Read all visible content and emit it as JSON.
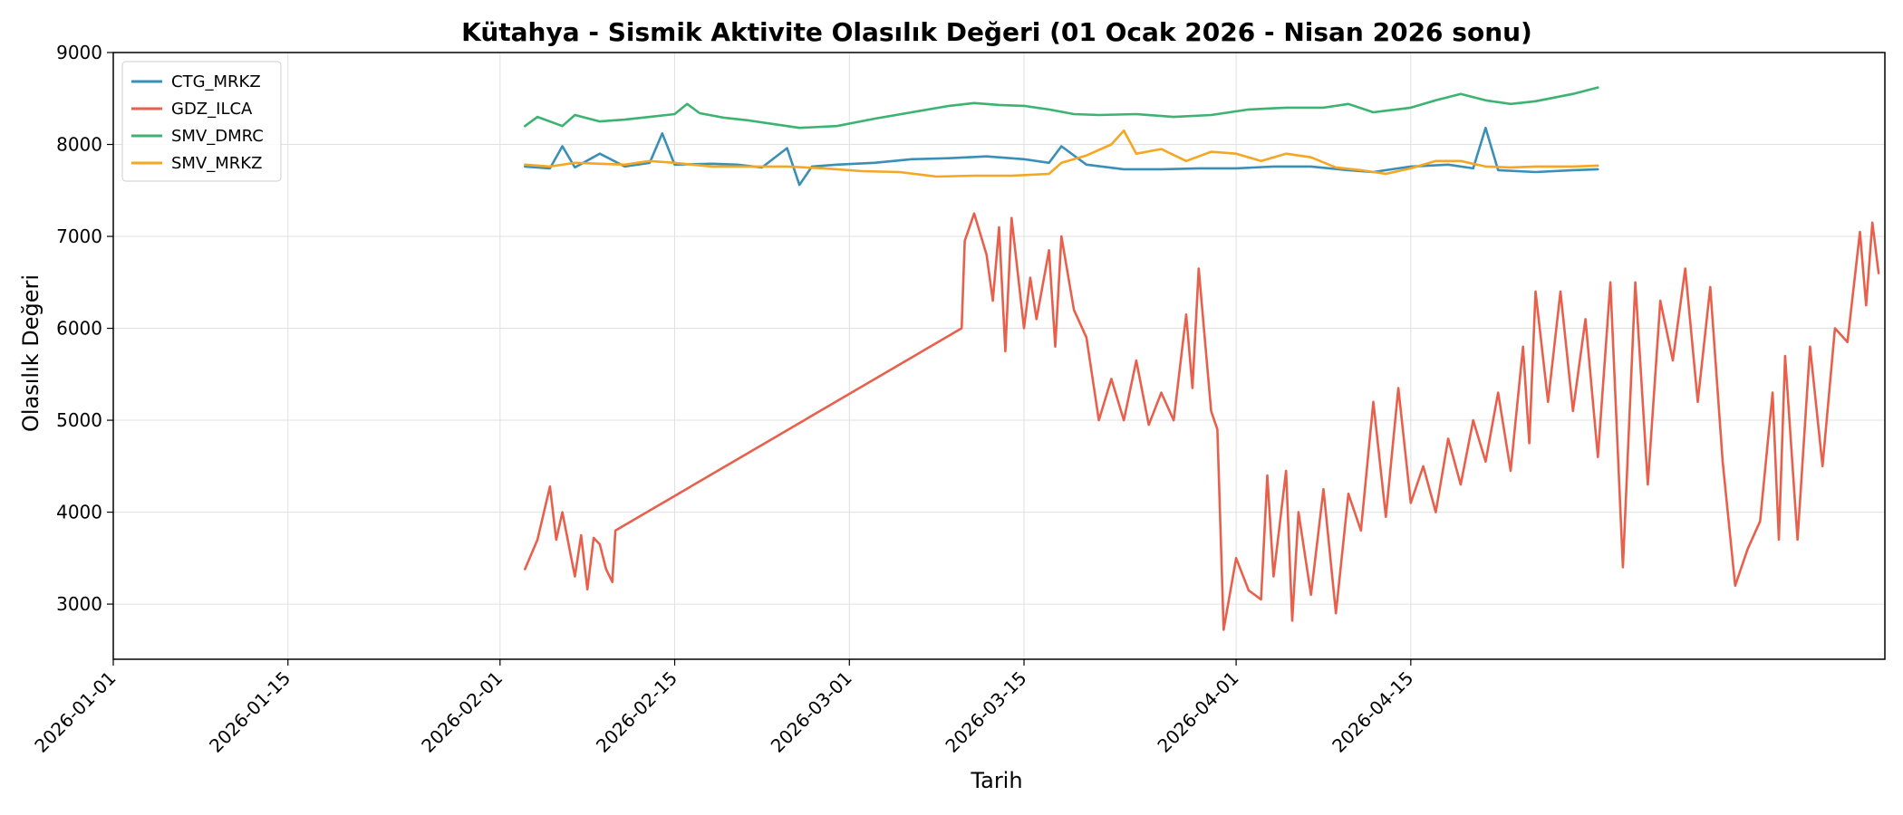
{
  "chart_data": {
    "type": "line",
    "title": "Kütahya - Sismik Aktivite Olasılık Değeri (01 Ocak 2026 - Nisan 2026 sonu)",
    "xlabel": "Tarih",
    "ylabel": "Olasılık Değeri",
    "xlim": [
      "2026-01-01",
      "2026-04-30"
    ],
    "ylim": [
      2400,
      9000
    ],
    "x_ticks": [
      "2026-01-01",
      "2026-01-15",
      "2026-02-01",
      "2026-02-15",
      "2026-03-01",
      "2026-03-15",
      "2026-04-01",
      "2026-04-15"
    ],
    "y_ticks": [
      3000,
      4000,
      5000,
      6000,
      7000,
      8000,
      9000
    ],
    "grid": true,
    "legend_position": "top-left",
    "series": [
      {
        "name": "CTG_MRKZ",
        "color": "#3a8fb7",
        "points": [
          [
            "2026-02-03",
            7760
          ],
          [
            "2026-02-05",
            7740
          ],
          [
            "2026-02-06",
            7980
          ],
          [
            "2026-02-07",
            7750
          ],
          [
            "2026-02-09",
            7900
          ],
          [
            "2026-02-11",
            7760
          ],
          [
            "2026-02-13",
            7800
          ],
          [
            "2026-02-14",
            8120
          ],
          [
            "2026-02-15",
            7780
          ],
          [
            "2026-02-18",
            7790
          ],
          [
            "2026-02-20",
            7780
          ],
          [
            "2026-02-22",
            7750
          ],
          [
            "2026-02-24",
            7960
          ],
          [
            "2026-02-25",
            7560
          ],
          [
            "2026-02-26",
            7760
          ],
          [
            "2026-02-28",
            7780
          ],
          [
            "2026-03-03",
            7800
          ],
          [
            "2026-03-06",
            7840
          ],
          [
            "2026-03-09",
            7850
          ],
          [
            "2026-03-12",
            7870
          ],
          [
            "2026-03-15",
            7840
          ],
          [
            "2026-03-17",
            7800
          ],
          [
            "2026-03-18",
            7980
          ],
          [
            "2026-03-20",
            7780
          ],
          [
            "2026-03-23",
            7730
          ],
          [
            "2026-03-26",
            7730
          ],
          [
            "2026-03-29",
            7740
          ],
          [
            "2026-04-01",
            7740
          ],
          [
            "2026-04-04",
            7760
          ],
          [
            "2026-04-07",
            7760
          ],
          [
            "2026-04-10",
            7720
          ],
          [
            "2026-04-12",
            7700
          ],
          [
            "2026-04-15",
            7760
          ],
          [
            "2026-04-18",
            7780
          ],
          [
            "2026-04-20",
            7740
          ],
          [
            "2026-04-21",
            8180
          ],
          [
            "2026-04-22",
            7720
          ],
          [
            "2026-04-25",
            7700
          ],
          [
            "2026-04-28",
            7720
          ],
          [
            "2026-04-30",
            7730
          ]
        ]
      },
      {
        "name": "GDZ_ILCA",
        "color": "#e8604c",
        "points": [
          [
            "2026-02-03",
            3380
          ],
          [
            "2026-02-04",
            3700
          ],
          [
            "2026-02-05",
            4280
          ],
          [
            "2026-02-05T12",
            3700
          ],
          [
            "2026-02-06",
            4000
          ],
          [
            "2026-02-07",
            3300
          ],
          [
            "2026-02-07T12",
            3750
          ],
          [
            "2026-02-08",
            3160
          ],
          [
            "2026-02-08T12",
            3720
          ],
          [
            "2026-02-09",
            3650
          ],
          [
            "2026-02-09T12",
            3380
          ],
          [
            "2026-02-10",
            3240
          ],
          [
            "2026-02-10T06",
            3800
          ],
          [
            "2026-03-10",
            6000
          ],
          [
            "2026-03-10T06",
            6950
          ],
          [
            "2026-03-11",
            7250
          ],
          [
            "2026-03-12",
            6800
          ],
          [
            "2026-03-12T12",
            6300
          ],
          [
            "2026-03-13",
            7100
          ],
          [
            "2026-03-13T12",
            5750
          ],
          [
            "2026-03-14",
            7200
          ],
          [
            "2026-03-15",
            6000
          ],
          [
            "2026-03-15T12",
            6550
          ],
          [
            "2026-03-16",
            6100
          ],
          [
            "2026-03-17",
            6850
          ],
          [
            "2026-03-17T12",
            5800
          ],
          [
            "2026-03-18",
            7000
          ],
          [
            "2026-03-19",
            6200
          ],
          [
            "2026-03-20",
            5900
          ],
          [
            "2026-03-21",
            5000
          ],
          [
            "2026-03-22",
            5450
          ],
          [
            "2026-03-23",
            5000
          ],
          [
            "2026-03-24",
            5650
          ],
          [
            "2026-03-25",
            4950
          ],
          [
            "2026-03-26",
            5300
          ],
          [
            "2026-03-27",
            5000
          ],
          [
            "2026-03-28",
            6150
          ],
          [
            "2026-03-28T12",
            5350
          ],
          [
            "2026-03-29",
            6650
          ],
          [
            "2026-03-30",
            5100
          ],
          [
            "2026-03-30T12",
            4900
          ],
          [
            "2026-03-31",
            2720
          ],
          [
            "2026-04-01",
            3500
          ],
          [
            "2026-04-02",
            3150
          ],
          [
            "2026-04-03",
            3050
          ],
          [
            "2026-04-03T12",
            4400
          ],
          [
            "2026-04-04",
            3300
          ],
          [
            "2026-04-05",
            4450
          ],
          [
            "2026-04-05T12",
            2820
          ],
          [
            "2026-04-06",
            4000
          ],
          [
            "2026-04-07",
            3100
          ],
          [
            "2026-04-08",
            4250
          ],
          [
            "2026-04-09",
            2900
          ],
          [
            "2026-04-10",
            4200
          ],
          [
            "2026-04-11",
            3800
          ],
          [
            "2026-04-12",
            5200
          ],
          [
            "2026-04-13",
            3950
          ],
          [
            "2026-04-14",
            5350
          ],
          [
            "2026-04-15",
            4100
          ],
          [
            "2026-04-16",
            4500
          ],
          [
            "2026-04-17",
            4000
          ],
          [
            "2026-04-18",
            4800
          ],
          [
            "2026-04-19",
            4300
          ],
          [
            "2026-04-20",
            5000
          ],
          [
            "2026-04-21",
            4550
          ],
          [
            "2026-04-22",
            5300
          ],
          [
            "2026-04-23",
            4450
          ],
          [
            "2026-04-24",
            5800
          ],
          [
            "2026-04-24T12",
            4750
          ],
          [
            "2026-04-25",
            6400
          ],
          [
            "2026-04-26",
            5200
          ],
          [
            "2026-04-27",
            6400
          ],
          [
            "2026-04-28",
            5100
          ],
          [
            "2026-04-29",
            6100
          ],
          [
            "2026-04-30",
            4600
          ],
          [
            "2026-05-01",
            6500
          ],
          [
            "2026-05-02",
            3400
          ],
          [
            "2026-05-03",
            6500
          ],
          [
            "2026-05-04",
            4300
          ],
          [
            "2026-05-05",
            6300
          ],
          [
            "2026-05-06",
            5650
          ],
          [
            "2026-05-07",
            6650
          ],
          [
            "2026-05-08",
            5200
          ],
          [
            "2026-05-09",
            6450
          ],
          [
            "2026-05-10",
            4550
          ],
          [
            "2026-05-11",
            3200
          ],
          [
            "2026-05-12",
            3600
          ],
          [
            "2026-05-13",
            3900
          ],
          [
            "2026-05-14",
            5300
          ],
          [
            "2026-05-14T12",
            3700
          ],
          [
            "2026-05-15",
            5700
          ],
          [
            "2026-05-16",
            3700
          ],
          [
            "2026-05-17",
            5800
          ],
          [
            "2026-05-18",
            4500
          ],
          [
            "2026-05-19",
            6000
          ],
          [
            "2026-05-20",
            5850
          ],
          [
            "2026-05-21",
            7050
          ],
          [
            "2026-05-21T12",
            6250
          ],
          [
            "2026-05-22",
            7150
          ],
          [
            "2026-05-22T12",
            6600
          ]
        ]
      },
      {
        "name": "SMV_DMRC",
        "color": "#3cb371",
        "points": [
          [
            "2026-02-03",
            8200
          ],
          [
            "2026-02-04",
            8300
          ],
          [
            "2026-02-06",
            8200
          ],
          [
            "2026-02-07",
            8320
          ],
          [
            "2026-02-09",
            8250
          ],
          [
            "2026-02-11",
            8270
          ],
          [
            "2026-02-13",
            8300
          ],
          [
            "2026-02-15",
            8330
          ],
          [
            "2026-02-16",
            8440
          ],
          [
            "2026-02-17",
            8340
          ],
          [
            "2026-02-19",
            8290
          ],
          [
            "2026-02-21",
            8260
          ],
          [
            "2026-02-23",
            8220
          ],
          [
            "2026-02-25",
            8180
          ],
          [
            "2026-02-28",
            8200
          ],
          [
            "2026-03-03",
            8280
          ],
          [
            "2026-03-06",
            8350
          ],
          [
            "2026-03-09",
            8420
          ],
          [
            "2026-03-11",
            8450
          ],
          [
            "2026-03-13",
            8430
          ],
          [
            "2026-03-15",
            8420
          ],
          [
            "2026-03-17",
            8380
          ],
          [
            "2026-03-19",
            8330
          ],
          [
            "2026-03-21",
            8320
          ],
          [
            "2026-03-24",
            8330
          ],
          [
            "2026-03-27",
            8300
          ],
          [
            "2026-03-30",
            8320
          ],
          [
            "2026-04-02",
            8380
          ],
          [
            "2026-04-05",
            8400
          ],
          [
            "2026-04-08",
            8400
          ],
          [
            "2026-04-10",
            8440
          ],
          [
            "2026-04-12",
            8350
          ],
          [
            "2026-04-15",
            8400
          ],
          [
            "2026-04-17",
            8480
          ],
          [
            "2026-04-19",
            8550
          ],
          [
            "2026-04-21",
            8480
          ],
          [
            "2026-04-23",
            8440
          ],
          [
            "2026-04-25",
            8470
          ],
          [
            "2026-04-28",
            8550
          ],
          [
            "2026-04-30",
            8620
          ]
        ]
      },
      {
        "name": "SMV_MRKZ",
        "color": "#f5a623",
        "points": [
          [
            "2026-02-03",
            7780
          ],
          [
            "2026-02-05",
            7760
          ],
          [
            "2026-02-07",
            7800
          ],
          [
            "2026-02-09",
            7790
          ],
          [
            "2026-02-11",
            7780
          ],
          [
            "2026-02-13",
            7820
          ],
          [
            "2026-02-15",
            7800
          ],
          [
            "2026-02-18",
            7760
          ],
          [
            "2026-02-21",
            7760
          ],
          [
            "2026-02-24",
            7760
          ],
          [
            "2026-02-27",
            7740
          ],
          [
            "2026-03-02",
            7710
          ],
          [
            "2026-03-05",
            7700
          ],
          [
            "2026-03-08",
            7650
          ],
          [
            "2026-03-11",
            7660
          ],
          [
            "2026-03-14",
            7660
          ],
          [
            "2026-03-17",
            7680
          ],
          [
            "2026-03-18",
            7800
          ],
          [
            "2026-03-20",
            7880
          ],
          [
            "2026-03-22",
            8000
          ],
          [
            "2026-03-23",
            8150
          ],
          [
            "2026-03-24",
            7900
          ],
          [
            "2026-03-26",
            7950
          ],
          [
            "2026-03-28",
            7820
          ],
          [
            "2026-03-30",
            7920
          ],
          [
            "2026-04-01",
            7900
          ],
          [
            "2026-04-03",
            7820
          ],
          [
            "2026-04-05",
            7900
          ],
          [
            "2026-04-07",
            7860
          ],
          [
            "2026-04-09",
            7750
          ],
          [
            "2026-04-11",
            7720
          ],
          [
            "2026-04-13",
            7680
          ],
          [
            "2026-04-15",
            7740
          ],
          [
            "2026-04-17",
            7820
          ],
          [
            "2026-04-19",
            7820
          ],
          [
            "2026-04-21",
            7760
          ],
          [
            "2026-04-23",
            7750
          ],
          [
            "2026-04-25",
            7760
          ],
          [
            "2026-04-28",
            7760
          ],
          [
            "2026-04-30",
            7770
          ]
        ]
      }
    ]
  }
}
